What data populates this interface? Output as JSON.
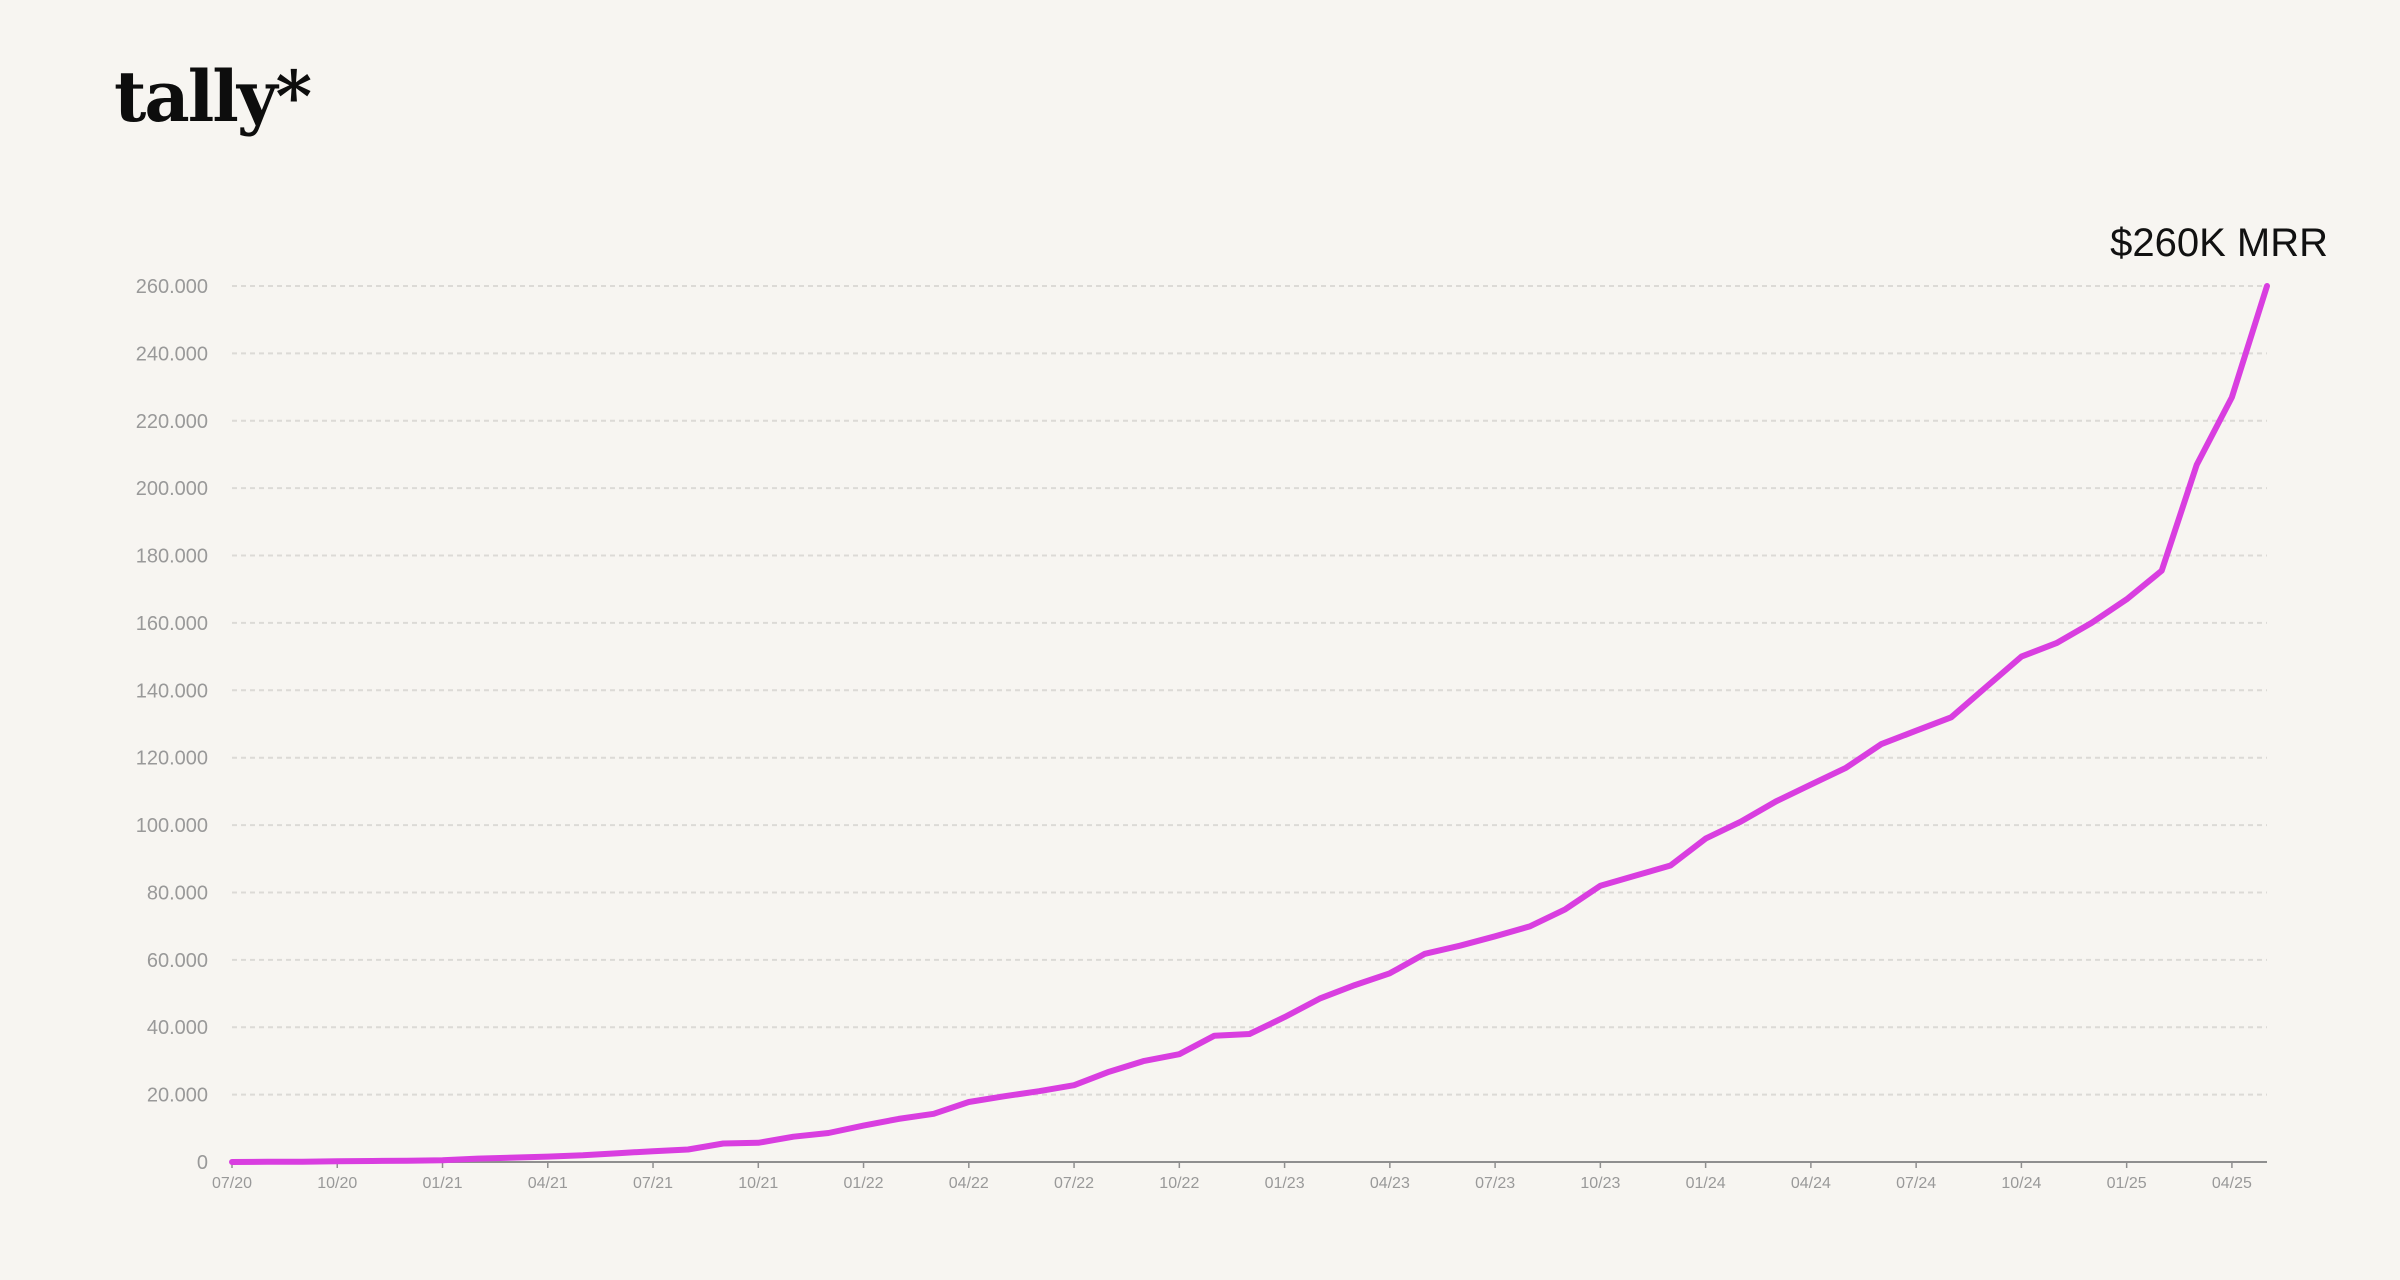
{
  "brand": {
    "logo_text": "tally*"
  },
  "colors": {
    "background": "#f7f5f1",
    "line": "#d93ee0",
    "grid": "#dcdad6",
    "axis": "#8f8f8f",
    "tick_text": "#999999",
    "label_text": "#111111"
  },
  "chart_data": {
    "type": "line",
    "title": "",
    "xlabel": "",
    "ylabel": "",
    "ylim": [
      0,
      260000
    ],
    "y_ticks": [
      0,
      20000,
      40000,
      60000,
      80000,
      100000,
      120000,
      140000,
      160000,
      180000,
      200000,
      220000,
      240000,
      260000
    ],
    "y_tick_labels": [
      "0",
      "20.000",
      "40.000",
      "60.000",
      "80.000",
      "100.000",
      "120.000",
      "140.000",
      "160.000",
      "180.000",
      "200.000",
      "220.000",
      "240.000",
      "260.000"
    ],
    "x_tick_labels": [
      "07/20",
      "10/20",
      "01/21",
      "04/21",
      "07/21",
      "10/21",
      "01/22",
      "04/22",
      "07/22",
      "10/22",
      "01/23",
      "04/23",
      "07/23",
      "10/23",
      "01/24",
      "04/24",
      "07/24",
      "10/24",
      "01/25",
      "04/25"
    ],
    "grid": true,
    "end_label": "$260K MRR",
    "x": [
      "2020-07",
      "2020-08",
      "2020-09",
      "2020-10",
      "2020-11",
      "2020-12",
      "2021-01",
      "2021-02",
      "2021-03",
      "2021-04",
      "2021-05",
      "2021-06",
      "2021-07",
      "2021-08",
      "2021-09",
      "2021-10",
      "2021-11",
      "2021-12",
      "2022-01",
      "2022-02",
      "2022-03",
      "2022-04",
      "2022-05",
      "2022-06",
      "2022-07",
      "2022-08",
      "2022-09",
      "2022-10",
      "2022-11",
      "2022-12",
      "2023-01",
      "2023-02",
      "2023-03",
      "2023-04",
      "2023-05",
      "2023-06",
      "2023-07",
      "2023-08",
      "2023-09",
      "2023-10",
      "2023-11",
      "2023-12",
      "2024-01",
      "2024-02",
      "2024-03",
      "2024-04",
      "2024-05",
      "2024-06",
      "2024-07",
      "2024-08",
      "2024-09",
      "2024-10",
      "2024-11",
      "2024-12",
      "2025-01",
      "2025-02",
      "2025-03",
      "2025-04",
      "2025-05"
    ],
    "series": [
      {
        "name": "",
        "values": [
          0,
          50,
          100,
          200,
          300,
          400,
          500,
          1000,
          1300,
          1600,
          2000,
          2600,
          3200,
          3700,
          5500,
          5700,
          7500,
          8600,
          10800,
          12800,
          14300,
          17800,
          19500,
          21000,
          22800,
          26800,
          30000,
          32000,
          37500,
          38000,
          43000,
          48500,
          52500,
          56000,
          61800,
          64200,
          67000,
          70000,
          75000,
          82000,
          85000,
          88000,
          96000,
          101000,
          107000,
          112000,
          117000,
          124000,
          128000,
          132000,
          141000,
          150000,
          154000,
          160000,
          167000,
          175500,
          207000,
          227000,
          260000
        ]
      }
    ]
  }
}
